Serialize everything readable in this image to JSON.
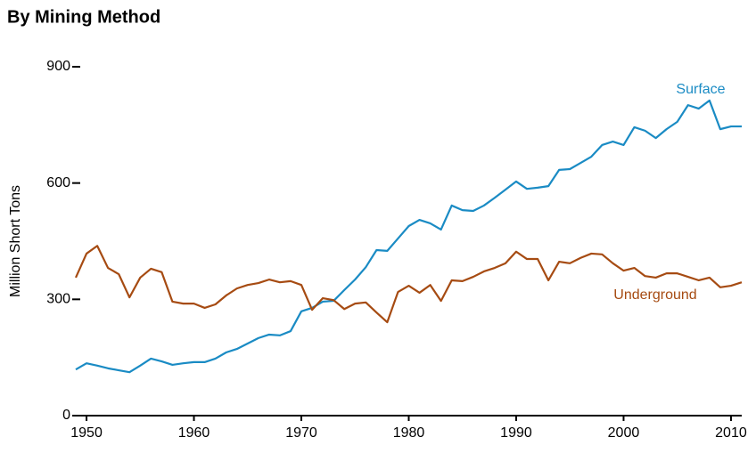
{
  "chart_data": {
    "type": "line",
    "title": "By Mining Method",
    "y_label": "Million Short Tons",
    "x": [
      1949,
      1950,
      1951,
      1952,
      1953,
      1954,
      1955,
      1956,
      1957,
      1958,
      1959,
      1960,
      1961,
      1962,
      1963,
      1964,
      1965,
      1966,
      1967,
      1968,
      1969,
      1970,
      1971,
      1972,
      1973,
      1974,
      1975,
      1976,
      1977,
      1978,
      1979,
      1980,
      1981,
      1982,
      1983,
      1984,
      1985,
      1986,
      1987,
      1988,
      1989,
      1990,
      1991,
      1992,
      1993,
      1994,
      1995,
      1996,
      1997,
      1998,
      1999,
      2000,
      2001,
      2002,
      2003,
      2004,
      2005,
      2006,
      2007,
      2008,
      2009,
      2010,
      2011
    ],
    "series": [
      {
        "name": "Surface",
        "color": "#1a8bc4",
        "values": [
          119,
          135,
          129,
          122,
          117,
          112,
          129,
          147,
          140,
          131,
          135,
          138,
          138,
          147,
          163,
          172,
          186,
          200,
          209,
          207,
          218,
          269,
          278,
          294,
          296,
          324,
          351,
          383,
          427,
          425,
          457,
          489,
          505,
          496,
          480,
          542,
          530,
          528,
          542,
          562,
          583,
          604,
          585,
          588,
          592,
          634,
          636,
          652,
          668,
          698,
          707,
          698,
          744,
          735,
          716,
          739,
          758,
          801,
          792,
          813,
          739,
          746,
          746
        ]
      },
      {
        "name": "Underground",
        "color": "#a64b12",
        "values": [
          356,
          418,
          438,
          381,
          365,
          305,
          356,
          379,
          370,
          294,
          289,
          289,
          278,
          287,
          310,
          328,
          337,
          342,
          351,
          344,
          347,
          337,
          273,
          303,
          298,
          275,
          289,
          292,
          266,
          241,
          319,
          335,
          317,
          337,
          296,
          349,
          347,
          358,
          372,
          381,
          393,
          423,
          404,
          404,
          349,
          397,
          393,
          407,
          418,
          416,
          393,
          374,
          381,
          360,
          356,
          367,
          367,
          358,
          349,
          356,
          331,
          335,
          344
        ]
      }
    ],
    "xlim": [
      1949,
      2011
    ],
    "xticks": [
      1950,
      1960,
      1970,
      1980,
      1990,
      2000,
      2010
    ],
    "ylim": [
      0,
      900
    ],
    "yticks": [
      0,
      300,
      600,
      900
    ]
  }
}
